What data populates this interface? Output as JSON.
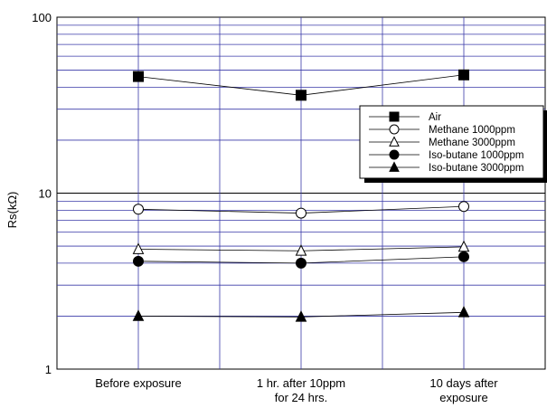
{
  "chart_data": {
    "type": "line",
    "title": "",
    "xlabel": "",
    "ylabel": "Rs(kΩ)",
    "yscale": "log",
    "ylim": [
      1,
      100
    ],
    "y_ticks": [
      "1",
      "10",
      "100"
    ],
    "categories": [
      [
        "Before exposure"
      ],
      [
        "1 hr. after 10ppm",
        "for 24 hrs."
      ],
      [
        "10 days after",
        "exposure"
      ]
    ],
    "grid": true,
    "legend_position": "right",
    "series": [
      {
        "name": "Air",
        "marker": "square-filled",
        "values": [
          46,
          36,
          47
        ]
      },
      {
        "name": "Methane 1000ppm",
        "marker": "circle-open",
        "values": [
          8.1,
          7.7,
          8.4
        ]
      },
      {
        "name": "Methane 3000ppm",
        "marker": "triangle-open",
        "values": [
          4.8,
          4.7,
          4.95
        ]
      },
      {
        "name": "Iso-butane 1000ppm",
        "marker": "circle-filled",
        "values": [
          4.1,
          4.0,
          4.35
        ]
      },
      {
        "name": "Iso-butane 3000ppm",
        "marker": "triangle-filled",
        "values": [
          2.0,
          1.98,
          2.1
        ]
      }
    ]
  }
}
